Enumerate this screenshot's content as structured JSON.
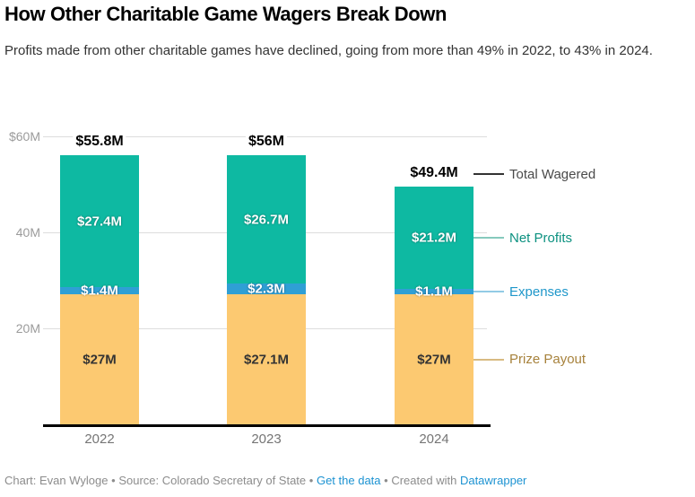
{
  "header": {
    "title": "How Other Charitable Game Wagers Break Down",
    "subtitle": "Profits made from other charitable games have declined, going from more than 49% in 2022, to 43% in 2024."
  },
  "chart_data": {
    "type": "bar",
    "stacked": true,
    "categories": [
      "2022",
      "2023",
      "2024"
    ],
    "series": [
      {
        "name": "Prize Payout",
        "color": "#fcc971",
        "label_color": "#333333",
        "label_halo": false,
        "values": [
          27,
          27.1,
          27
        ]
      },
      {
        "name": "Expenses",
        "color": "#2f9fd5",
        "label_color": "#ffffff",
        "label_halo": true,
        "values": [
          1.4,
          2.3,
          1.1
        ]
      },
      {
        "name": "Net Profits",
        "color": "#0eb9a2",
        "label_color": "#ffffff",
        "label_halo": true,
        "values": [
          27.4,
          26.7,
          21.2
        ]
      }
    ],
    "segment_labels": [
      [
        "$27M",
        "$1.4M",
        "$27.4M"
      ],
      [
        "$27.1M",
        "$2.3M",
        "$26.7M"
      ],
      [
        "$27M",
        "$1.1M",
        "$21.2M"
      ]
    ],
    "totals": [
      55.8,
      56,
      49.4
    ],
    "total_labels": [
      "$55.8M",
      "$56M",
      "$49.4M"
    ],
    "ylim": [
      0,
      60
    ],
    "grid": true,
    "y_ticks": [
      {
        "label": "$60M",
        "value": 60
      },
      {
        "label": "40M",
        "value": 40
      },
      {
        "label": "20M",
        "value": 20
      }
    ],
    "legend_position": "right",
    "annotations": [
      {
        "label": "Total Wagered",
        "text_color": "#4a4a4a",
        "line_color": "#333333"
      },
      {
        "label": "Net Profits",
        "text_color": "#0c9180",
        "line_color": "#86cabd"
      },
      {
        "label": "Expenses",
        "text_color": "#1f97ca",
        "line_color": "#92cbe5"
      },
      {
        "label": "Prize Payout",
        "text_color": "#a7823c",
        "line_color": "#d8bb82"
      }
    ]
  },
  "footer": {
    "credit": "Chart: Evan Wyloge",
    "separator": "•",
    "source": "Source: Colorado Secretary of State",
    "link_data": "Get the data",
    "created_with": "Created with",
    "link_datawrapper": "Datawrapper"
  }
}
